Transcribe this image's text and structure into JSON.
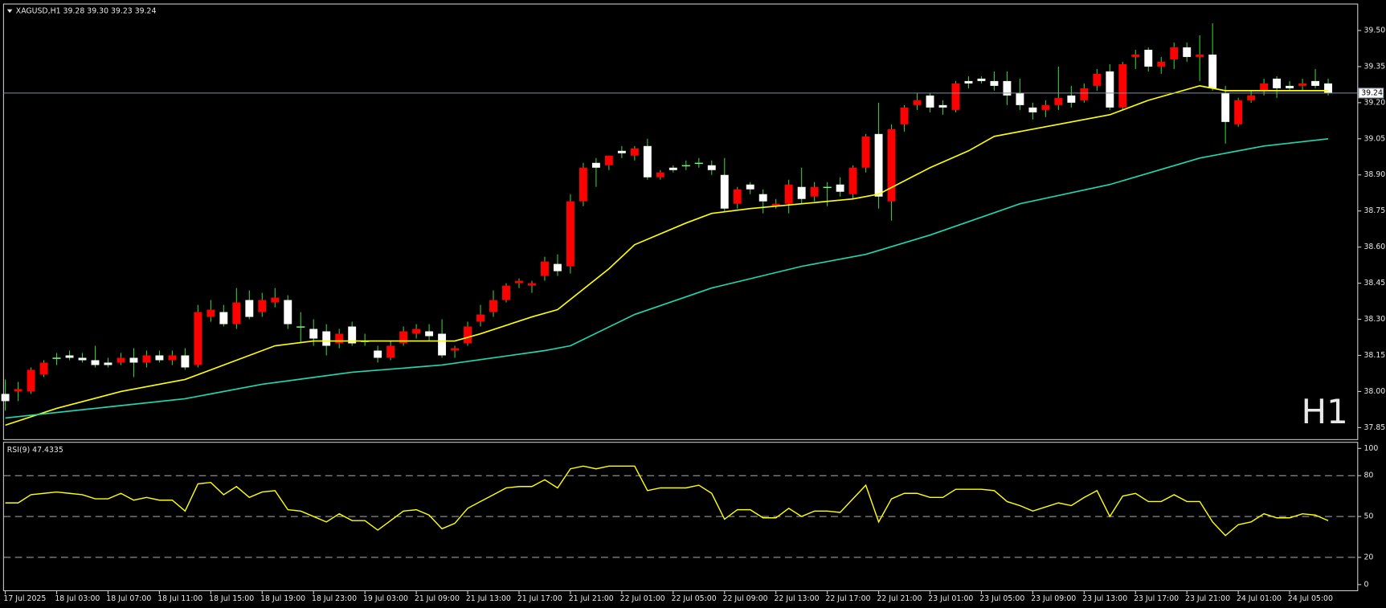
{
  "chart_data": [
    {
      "type": "candlestick",
      "title": "XAGUSD,H1  39.28 39.30 39.23 39.24",
      "period_label": "H1",
      "period_color": "#e01010",
      "categories": [
        "17 Jul 2025",
        null,
        null,
        null,
        "18 Jul 03:00",
        null,
        null,
        null,
        "18 Jul 07:00",
        null,
        null,
        null,
        "18 Jul 11:00",
        null,
        null,
        null,
        "18 Jul 15:00",
        null,
        null,
        null,
        "18 Jul 19:00",
        null,
        null,
        null,
        "18 Jul 23:00",
        null,
        null,
        null,
        "19 Jul 03:00",
        null,
        null,
        null,
        "21 Jul 09:00",
        null,
        null,
        null,
        "21 Jul 13:00",
        null,
        null,
        null,
        "21 Jul 17:00",
        null,
        null,
        null,
        "21 Jul 21:00",
        null,
        null,
        null,
        "22 Jul 01:00",
        null,
        null,
        null,
        "22 Jul 05:00",
        null,
        null,
        null,
        "22 Jul 09:00",
        null,
        null,
        null,
        "22 Jul 13:00",
        null,
        null,
        null,
        "22 Jul 17:00",
        null,
        null,
        null,
        "22 Jul 21:00",
        null,
        null,
        null,
        "23 Jul 01:00",
        null,
        null,
        null,
        "23 Jul 05:00",
        null,
        null,
        null,
        "23 Jul 09:00",
        null,
        null,
        null,
        "23 Jul 13:00",
        null,
        null,
        null,
        "23 Jul 17:00",
        null,
        null,
        null,
        "23 Jul 21:00",
        null,
        null,
        null,
        "24 Jul 01:00",
        null,
        null,
        null,
        "24 Jul 05:00",
        null,
        null,
        null
      ],
      "ohlc": [
        [
          37.99,
          38.05,
          37.92,
          37.96
        ],
        [
          38.0,
          38.04,
          37.96,
          38.01
        ],
        [
          38.0,
          38.1,
          37.99,
          38.09
        ],
        [
          38.07,
          38.13,
          38.06,
          38.12
        ],
        [
          38.14,
          38.16,
          38.11,
          38.14
        ],
        [
          38.15,
          38.17,
          38.13,
          38.14
        ],
        [
          38.14,
          38.16,
          38.12,
          38.13
        ],
        [
          38.13,
          38.19,
          38.1,
          38.11
        ],
        [
          38.12,
          38.14,
          38.1,
          38.11
        ],
        [
          38.12,
          38.16,
          38.11,
          38.14
        ],
        [
          38.14,
          38.18,
          38.06,
          38.12
        ],
        [
          38.12,
          38.17,
          38.1,
          38.15
        ],
        [
          38.15,
          38.17,
          38.12,
          38.13
        ],
        [
          38.13,
          38.17,
          38.11,
          38.15
        ],
        [
          38.15,
          38.18,
          38.09,
          38.1
        ],
        [
          38.11,
          38.36,
          38.1,
          38.33
        ],
        [
          38.31,
          38.38,
          38.29,
          38.34
        ],
        [
          38.33,
          38.36,
          38.27,
          38.28
        ],
        [
          38.28,
          38.43,
          38.26,
          38.37
        ],
        [
          38.38,
          38.42,
          38.3,
          38.31
        ],
        [
          38.33,
          38.41,
          38.31,
          38.38
        ],
        [
          38.37,
          38.43,
          38.35,
          38.39
        ],
        [
          38.38,
          38.4,
          38.26,
          38.28
        ],
        [
          38.27,
          38.33,
          38.2,
          38.27
        ],
        [
          38.26,
          38.3,
          38.19,
          38.22
        ],
        [
          38.25,
          38.28,
          38.15,
          38.19
        ],
        [
          38.2,
          38.26,
          38.18,
          38.24
        ],
        [
          38.27,
          38.29,
          38.19,
          38.2
        ],
        [
          38.21,
          38.24,
          38.19,
          38.21
        ],
        [
          38.17,
          38.19,
          38.12,
          38.14
        ],
        [
          38.14,
          38.21,
          38.13,
          38.19
        ],
        [
          38.2,
          38.27,
          38.19,
          38.25
        ],
        [
          38.24,
          38.28,
          38.22,
          38.26
        ],
        [
          38.25,
          38.28,
          38.21,
          38.23
        ],
        [
          38.24,
          38.3,
          38.14,
          38.15
        ],
        [
          38.17,
          38.19,
          38.14,
          38.18
        ],
        [
          38.2,
          38.29,
          38.19,
          38.27
        ],
        [
          38.29,
          38.36,
          38.27,
          38.32
        ],
        [
          38.33,
          38.42,
          38.31,
          38.38
        ],
        [
          38.38,
          38.45,
          38.37,
          38.44
        ],
        [
          38.45,
          38.47,
          38.43,
          38.46
        ],
        [
          38.44,
          38.46,
          38.41,
          38.45
        ],
        [
          38.48,
          38.56,
          38.46,
          38.54
        ],
        [
          38.53,
          38.57,
          38.48,
          38.5
        ],
        [
          38.52,
          38.82,
          38.49,
          38.79
        ],
        [
          38.79,
          38.95,
          38.77,
          38.93
        ],
        [
          38.95,
          38.97,
          38.85,
          38.93
        ],
        [
          38.94,
          38.98,
          38.92,
          38.98
        ],
        [
          39.0,
          39.02,
          38.97,
          38.99
        ],
        [
          38.98,
          39.02,
          38.96,
          39.01
        ],
        [
          39.02,
          39.05,
          38.88,
          38.89
        ],
        [
          38.89,
          38.92,
          38.88,
          38.91
        ],
        [
          38.93,
          38.94,
          38.91,
          38.92
        ],
        [
          38.94,
          38.96,
          38.92,
          38.94
        ],
        [
          38.95,
          38.97,
          38.93,
          38.95
        ],
        [
          38.94,
          38.96,
          38.9,
          38.92
        ],
        [
          38.9,
          38.97,
          38.75,
          38.76
        ],
        [
          38.78,
          38.85,
          38.76,
          38.84
        ],
        [
          38.86,
          38.87,
          38.82,
          38.84
        ],
        [
          38.82,
          38.84,
          38.74,
          38.79
        ],
        [
          38.77,
          38.8,
          38.76,
          38.78
        ],
        [
          38.78,
          38.88,
          38.74,
          38.86
        ],
        [
          38.85,
          38.93,
          38.78,
          38.8
        ],
        [
          38.81,
          38.87,
          38.79,
          38.85
        ],
        [
          38.85,
          38.87,
          38.77,
          38.85
        ],
        [
          38.86,
          38.89,
          38.81,
          38.83
        ],
        [
          38.82,
          38.94,
          38.8,
          38.93
        ],
        [
          38.93,
          39.07,
          38.91,
          39.06
        ],
        [
          39.07,
          39.2,
          38.76,
          38.81
        ],
        [
          38.79,
          39.11,
          38.71,
          39.09
        ],
        [
          39.11,
          39.19,
          39.08,
          39.18
        ],
        [
          39.19,
          39.24,
          39.17,
          39.21
        ],
        [
          39.23,
          39.24,
          39.16,
          39.18
        ],
        [
          39.19,
          39.21,
          39.15,
          39.18
        ],
        [
          39.17,
          39.29,
          39.16,
          39.28
        ],
        [
          39.29,
          39.31,
          39.26,
          39.28
        ],
        [
          39.3,
          39.31,
          39.28,
          39.29
        ],
        [
          39.29,
          39.33,
          39.25,
          39.27
        ],
        [
          39.29,
          39.33,
          39.19,
          39.23
        ],
        [
          39.24,
          39.3,
          39.17,
          39.19
        ],
        [
          39.18,
          39.2,
          39.13,
          39.16
        ],
        [
          39.17,
          39.21,
          39.14,
          39.19
        ],
        [
          39.19,
          39.35,
          39.17,
          39.22
        ],
        [
          39.23,
          39.27,
          39.18,
          39.2
        ],
        [
          39.21,
          39.28,
          39.2,
          39.26
        ],
        [
          39.27,
          39.34,
          39.25,
          39.32
        ],
        [
          39.33,
          39.36,
          39.17,
          39.18
        ],
        [
          39.18,
          39.37,
          39.17,
          39.36
        ],
        [
          39.39,
          39.42,
          39.34,
          39.4
        ],
        [
          39.42,
          39.43,
          39.33,
          39.35
        ],
        [
          39.35,
          39.39,
          39.32,
          39.37
        ],
        [
          39.38,
          39.45,
          39.34,
          39.43
        ],
        [
          39.43,
          39.45,
          39.37,
          39.39
        ],
        [
          39.39,
          39.48,
          39.29,
          39.4
        ],
        [
          39.4,
          39.53,
          39.25,
          39.26
        ],
        [
          39.24,
          39.27,
          39.03,
          39.12
        ],
        [
          39.11,
          39.22,
          39.1,
          39.21
        ],
        [
          39.21,
          39.25,
          39.2,
          39.23
        ],
        [
          39.25,
          39.3,
          39.23,
          39.28
        ],
        [
          39.3,
          39.31,
          39.22,
          39.26
        ],
        [
          39.27,
          39.29,
          39.25,
          39.26
        ],
        [
          39.27,
          39.3,
          39.25,
          39.28
        ],
        [
          39.29,
          39.34,
          39.26,
          39.27
        ],
        [
          39.28,
          39.3,
          39.23,
          39.24
        ]
      ],
      "up_color": "#ff0000",
      "down_color": "#ffffff",
      "wick_color": "#33cc33",
      "series": [
        {
          "color": "#ffff00",
          "x": [
            0,
            4,
            9,
            14,
            18,
            21,
            24,
            30,
            35,
            37,
            41,
            43,
            47,
            49,
            53,
            55,
            58,
            64,
            66,
            68,
            72,
            75,
            77,
            81,
            85,
            86,
            89,
            93,
            95,
            98,
            103
          ],
          "values": [
            37.86,
            37.93,
            38.0,
            38.05,
            38.13,
            38.19,
            38.21,
            38.21,
            38.21,
            38.24,
            38.31,
            38.34,
            38.51,
            38.61,
            38.7,
            38.74,
            38.76,
            38.79,
            38.8,
            38.82,
            38.93,
            39.0,
            39.06,
            39.1,
            39.14,
            39.15,
            39.21,
            39.27,
            39.25,
            39.25,
            39.25
          ]
        },
        {
          "color": "#20d8b0",
          "x": [
            0,
            14,
            20,
            27,
            34,
            42,
            44,
            49,
            55,
            62,
            67,
            72,
            79,
            86,
            93,
            98,
            103
          ],
          "values": [
            37.89,
            37.97,
            38.03,
            38.08,
            38.11,
            38.17,
            38.19,
            38.32,
            38.43,
            38.52,
            38.57,
            38.65,
            38.78,
            38.86,
            38.97,
            39.02,
            39.05
          ]
        }
      ],
      "last_price": 39.24,
      "ylim": [
        37.8,
        39.61
      ],
      "yticks": [
        37.85,
        {
          "value": 38.0,
          "label": "38.00"
        },
        38.15,
        {
          "value": 38.3,
          "label": "38.30"
        },
        38.45,
        {
          "value": 38.6,
          "label": "38.60"
        },
        38.75,
        {
          "value": 38.9,
          "label": "38.90"
        },
        39.05,
        {
          "value": 39.2,
          "label": "39.20"
        },
        39.35,
        {
          "value": 39.5,
          "label": "39.50"
        }
      ]
    },
    {
      "type": "line",
      "title": "RSI(9) 47.4335",
      "color": "#ffff00",
      "values": [
        60,
        60,
        66,
        67,
        68,
        67,
        66,
        63,
        63,
        67,
        62,
        64,
        62,
        62,
        54,
        74,
        75,
        66,
        72,
        64,
        68,
        69,
        55,
        54,
        50,
        46,
        52,
        47,
        47,
        40,
        47,
        54,
        55,
        51,
        41,
        45,
        56,
        61,
        66,
        71,
        72,
        72,
        77,
        71,
        85,
        87,
        85,
        87,
        87,
        87,
        69,
        71,
        71,
        71,
        73,
        67,
        48,
        55,
        55,
        49,
        49,
        56,
        50,
        54,
        54,
        53,
        63,
        73,
        46,
        63,
        67,
        67,
        64,
        64,
        70,
        70,
        70,
        69,
        61,
        58,
        54,
        57,
        60,
        58,
        64,
        69,
        50,
        65,
        67,
        61,
        61,
        66,
        61,
        61,
        46,
        36,
        44,
        46,
        52,
        49,
        49,
        52,
        51,
        47
      ],
      "levels": [
        20,
        50,
        80
      ],
      "ylim": [
        -4.5,
        104.5
      ],
      "yticks": [
        0,
        20,
        50,
        80,
        100
      ]
    }
  ]
}
